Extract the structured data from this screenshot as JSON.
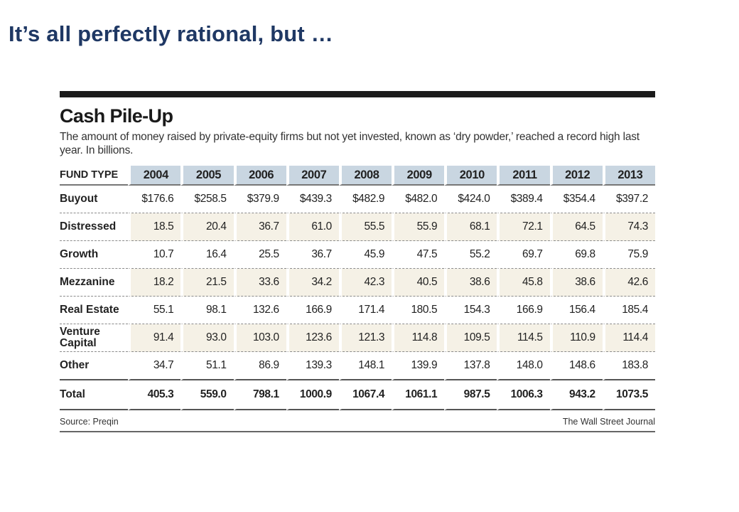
{
  "slide": {
    "title": "It’s all perfectly rational, but …"
  },
  "chart_data": {
    "type": "table",
    "title": "Cash Pile-Up",
    "subtitle": "The amount of money raised by private-equity firms but not yet invested, known as ‘dry powder,’ reached a record high last year. In billions.",
    "header_label": "FUND TYPE",
    "years": [
      "2004",
      "2005",
      "2006",
      "2007",
      "2008",
      "2009",
      "2010",
      "2011",
      "2012",
      "2013"
    ],
    "rows": [
      {
        "label": "Buyout",
        "values": [
          "$176.6",
          "$258.5",
          "$379.9",
          "$439.3",
          "$482.9",
          "$482.0",
          "$424.0",
          "$389.4",
          "$354.4",
          "$397.2"
        ]
      },
      {
        "label": "Distressed",
        "values": [
          "18.5",
          "20.4",
          "36.7",
          "61.0",
          "55.5",
          "55.9",
          "68.1",
          "72.1",
          "64.5",
          "74.3"
        ]
      },
      {
        "label": "Growth",
        "values": [
          "10.7",
          "16.4",
          "25.5",
          "36.7",
          "45.9",
          "47.5",
          "55.2",
          "69.7",
          "69.8",
          "75.9"
        ]
      },
      {
        "label": "Mezzanine",
        "values": [
          "18.2",
          "21.5",
          "33.6",
          "34.2",
          "42.3",
          "40.5",
          "38.6",
          "45.8",
          "38.6",
          "42.6"
        ]
      },
      {
        "label": "Real Estate",
        "values": [
          "55.1",
          "98.1",
          "132.6",
          "166.9",
          "171.4",
          "180.5",
          "154.3",
          "166.9",
          "156.4",
          "185.4"
        ]
      },
      {
        "label": "Venture Capital",
        "values": [
          "91.4",
          "93.0",
          "103.0",
          "123.6",
          "121.3",
          "114.8",
          "109.5",
          "114.5",
          "110.9",
          "114.4"
        ]
      },
      {
        "label": "Other",
        "values": [
          "34.7",
          "51.1",
          "86.9",
          "139.3",
          "148.1",
          "139.9",
          "137.8",
          "148.0",
          "148.6",
          "183.8"
        ]
      }
    ],
    "total": {
      "label": "Total",
      "values": [
        "405.3",
        "559.0",
        "798.1",
        "1000.9",
        "1067.4",
        "1061.1",
        "987.5",
        "1006.3",
        "943.2",
        "1073.5"
      ]
    },
    "source": "Source: Preqin",
    "credit": "The Wall Street Journal"
  },
  "colors": {
    "title_blue": "#1f3864",
    "header_fill": "#c9d6e1",
    "row_tint": "#f5f1e6",
    "rule": "#1b1b1b"
  }
}
